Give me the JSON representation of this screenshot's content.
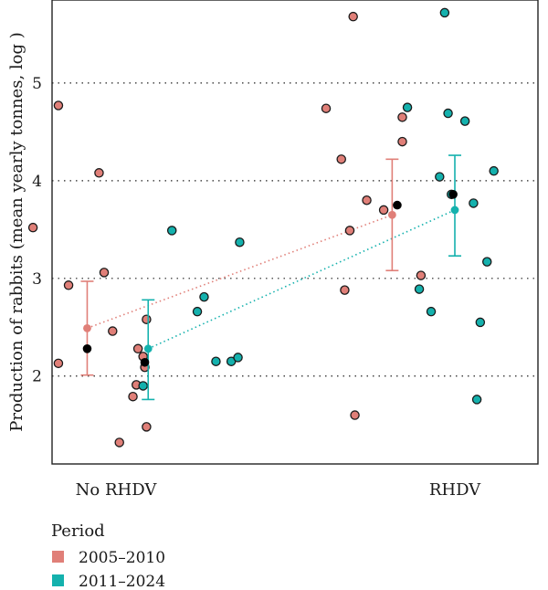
{
  "chart_data": {
    "type": "scatter",
    "ylabel": "Production of rabbits (mean yearly tonnes, log )",
    "ylim": [
      1.1,
      5.85
    ],
    "yticks": [
      2,
      3,
      4,
      5
    ],
    "grid": "horizontal dotted",
    "categories": [
      "No RHDV",
      "RHDV"
    ],
    "legend": {
      "title": "Period",
      "placement": "bottom-left",
      "entries": [
        {
          "label": "2005–2010",
          "color": "#e07f78"
        },
        {
          "label": "2011–2024",
          "color": "#14b1ad"
        }
      ]
    },
    "overall_means": [
      {
        "category": 0.83,
        "value": 2.28
      },
      {
        "category": 1.17,
        "value": 2.14
      },
      {
        "category": 2.66,
        "value": 3.75
      },
      {
        "category": 2.99,
        "value": 3.86
      }
    ],
    "series": [
      {
        "name": "2005–2010",
        "color": "#e07f78",
        "group_means": [
          {
            "category": 0.83,
            "mean": 2.49,
            "lower": 2.01,
            "upper": 2.97
          },
          {
            "category": 2.63,
            "mean": 3.65,
            "lower": 3.08,
            "upper": 4.22
          }
        ],
        "points": [
          {
            "category": 0.51,
            "value": 3.52
          },
          {
            "category": 0.66,
            "value": 4.77
          },
          {
            "category": 0.66,
            "value": 2.13
          },
          {
            "category": 0.72,
            "value": 2.93
          },
          {
            "category": 0.9,
            "value": 4.08
          },
          {
            "category": 0.93,
            "value": 3.06
          },
          {
            "category": 0.98,
            "value": 2.46
          },
          {
            "category": 1.02,
            "value": 1.32
          },
          {
            "category": 1.1,
            "value": 1.79
          },
          {
            "category": 1.12,
            "value": 1.91
          },
          {
            "category": 1.13,
            "value": 2.28
          },
          {
            "category": 1.16,
            "value": 2.2
          },
          {
            "category": 1.17,
            "value": 2.09
          },
          {
            "category": 1.18,
            "value": 1.48
          },
          {
            "category": 1.18,
            "value": 2.58
          },
          {
            "category": 2.24,
            "value": 4.74
          },
          {
            "category": 2.33,
            "value": 4.22
          },
          {
            "category": 2.35,
            "value": 2.88
          },
          {
            "category": 2.38,
            "value": 3.49
          },
          {
            "category": 2.4,
            "value": 5.68
          },
          {
            "category": 2.41,
            "value": 1.6
          },
          {
            "category": 2.48,
            "value": 3.8
          },
          {
            "category": 2.58,
            "value": 3.7
          },
          {
            "category": 2.69,
            "value": 4.65
          },
          {
            "category": 2.69,
            "value": 4.4
          },
          {
            "category": 2.8,
            "value": 3.03
          }
        ]
      },
      {
        "name": "2011–2024",
        "color": "#14b1ad",
        "group_means": [
          {
            "category": 1.19,
            "mean": 2.28,
            "lower": 1.76,
            "upper": 2.78
          },
          {
            "category": 3.0,
            "mean": 3.7,
            "lower": 3.23,
            "upper": 4.26
          }
        ],
        "points": [
          {
            "category": 1.16,
            "value": 1.9
          },
          {
            "category": 1.33,
            "value": 3.49
          },
          {
            "category": 1.48,
            "value": 2.66
          },
          {
            "category": 1.52,
            "value": 2.81
          },
          {
            "category": 1.59,
            "value": 2.15
          },
          {
            "category": 1.68,
            "value": 2.15
          },
          {
            "category": 1.72,
            "value": 2.19
          },
          {
            "category": 1.73,
            "value": 3.37
          },
          {
            "category": 2.72,
            "value": 4.75
          },
          {
            "category": 2.79,
            "value": 2.89
          },
          {
            "category": 2.86,
            "value": 2.66
          },
          {
            "category": 2.91,
            "value": 4.04
          },
          {
            "category": 2.94,
            "value": 5.72
          },
          {
            "category": 2.96,
            "value": 4.69
          },
          {
            "category": 2.98,
            "value": 3.86
          },
          {
            "category": 3.06,
            "value": 4.61
          },
          {
            "category": 3.11,
            "value": 3.77
          },
          {
            "category": 3.13,
            "value": 1.76
          },
          {
            "category": 3.15,
            "value": 2.55
          },
          {
            "category": 3.19,
            "value": 3.17
          },
          {
            "category": 3.23,
            "value": 4.1
          }
        ]
      }
    ]
  }
}
